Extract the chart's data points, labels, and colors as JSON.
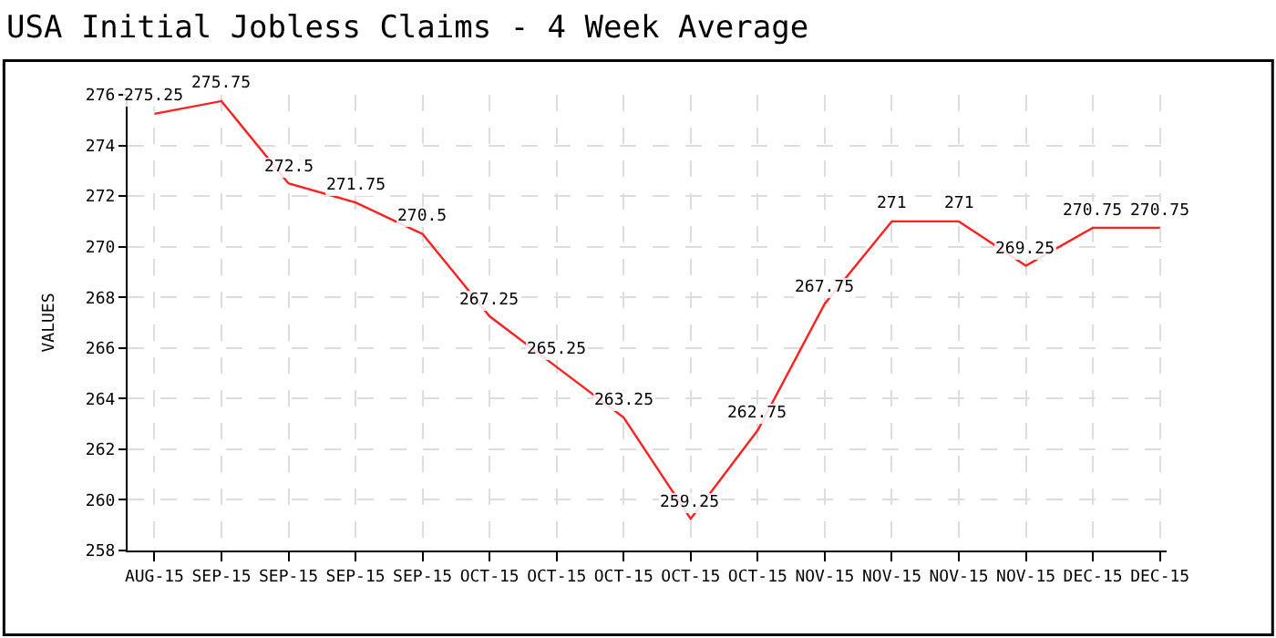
{
  "chart_data": {
    "type": "line",
    "title": "USA Initial Jobless Claims - 4 Week Average",
    "ylabel": "VALUES",
    "categories": [
      "AUG-15",
      "SEP-15",
      "SEP-15",
      "SEP-15",
      "SEP-15",
      "OCT-15",
      "OCT-15",
      "OCT-15",
      "OCT-15",
      "OCT-15",
      "NOV-15",
      "NOV-15",
      "NOV-15",
      "NOV-15",
      "DEC-15",
      "DEC-15"
    ],
    "series": [
      {
        "color": "#ff2020",
        "values": [
          275.25,
          275.75,
          272.5,
          271.75,
          270.5,
          267.25,
          265.25,
          263.25,
          259.25,
          262.75,
          267.75,
          271,
          271,
          269.25,
          270.75,
          270.75
        ]
      }
    ],
    "ylim": [
      258,
      276
    ],
    "yticks": [
      258,
      260,
      262,
      264,
      266,
      268,
      270,
      272,
      274,
      276
    ],
    "grid": true,
    "data_labels": true,
    "marker": "none",
    "line_style": "solid"
  }
}
